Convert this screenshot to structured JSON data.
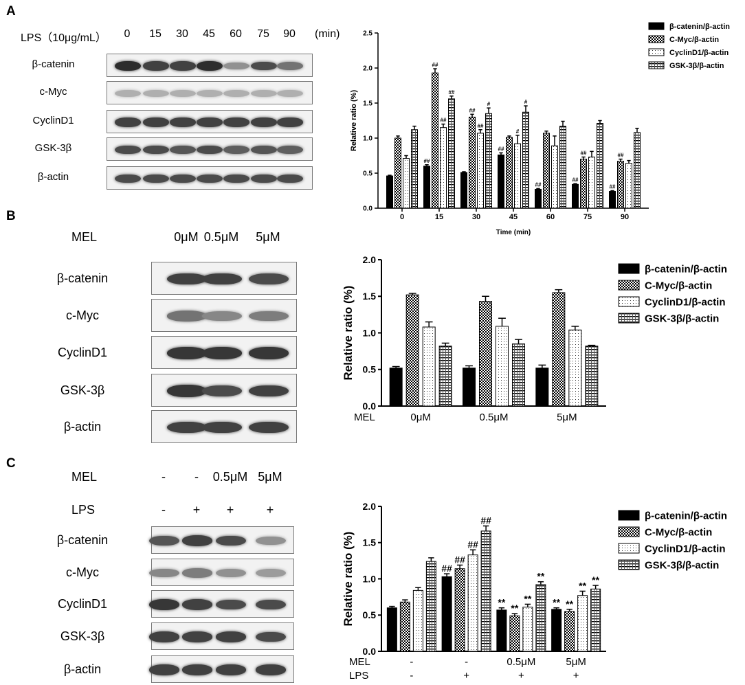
{
  "panelA": {
    "letter": "A",
    "treatment_label": "LPS（10μg/mL）",
    "lanes": [
      "0",
      "15",
      "30",
      "45",
      "60",
      "75",
      "90"
    ],
    "unit": "(min)",
    "rows": [
      {
        "label": "β-catenin",
        "intensity": [
          0.95,
          0.85,
          0.85,
          0.95,
          0.45,
          0.8,
          0.6
        ]
      },
      {
        "label": "c-Myc",
        "intensity": [
          0.3,
          0.3,
          0.3,
          0.3,
          0.3,
          0.3,
          0.3
        ]
      },
      {
        "label": "CyclinD1",
        "intensity": [
          0.85,
          0.85,
          0.85,
          0.85,
          0.85,
          0.85,
          0.85
        ]
      },
      {
        "label": "GSK-3β",
        "intensity": [
          0.8,
          0.8,
          0.75,
          0.8,
          0.7,
          0.75,
          0.7
        ]
      },
      {
        "label": "β-actin",
        "intensity": [
          0.8,
          0.8,
          0.8,
          0.8,
          0.8,
          0.8,
          0.8
        ]
      }
    ]
  },
  "panelB": {
    "letter": "B",
    "treatment_label": "MEL",
    "lanes": [
      "0μM",
      "0.5μM",
      "5μM"
    ],
    "rows": [
      {
        "label": "β-catenin",
        "intensity": [
          0.85,
          0.85,
          0.8
        ]
      },
      {
        "label": "c-Myc",
        "intensity": [
          0.6,
          0.5,
          0.55
        ]
      },
      {
        "label": "CyclinD1",
        "intensity": [
          0.9,
          0.9,
          0.9
        ]
      },
      {
        "label": "GSK-3β",
        "intensity": [
          0.9,
          0.8,
          0.85
        ]
      },
      {
        "label": "β-actin",
        "intensity": [
          0.85,
          0.85,
          0.85
        ]
      }
    ]
  },
  "panelC": {
    "letter": "C",
    "mel_label": "MEL",
    "mel_lanes": [
      "-",
      "-",
      "0.5μM",
      "5μM"
    ],
    "lps_label": "LPS",
    "lps_lanes": [
      "-",
      "+",
      "+",
      "+"
    ],
    "rows": [
      {
        "label": "β-catenin",
        "intensity": [
          0.75,
          0.85,
          0.8,
          0.45
        ]
      },
      {
        "label": "c-Myc",
        "intensity": [
          0.5,
          0.55,
          0.45,
          0.4
        ]
      },
      {
        "label": "CyclinD1",
        "intensity": [
          0.9,
          0.85,
          0.8,
          0.8
        ]
      },
      {
        "label": "GSK-3β",
        "intensity": [
          0.85,
          0.85,
          0.85,
          0.8
        ]
      },
      {
        "label": "β-actin",
        "intensity": [
          0.85,
          0.85,
          0.85,
          0.85
        ]
      }
    ]
  },
  "colors": {
    "black": "#000000",
    "band": "#1a1a1a",
    "blot_bg": "#f2f2f2"
  },
  "chart_data": [
    {
      "id": "A",
      "type": "bar",
      "ylabel": "Relative ratio (%)",
      "xlabel": "Time (min)",
      "ylim": [
        0,
        2.5
      ],
      "yticks": [
        "0.0",
        "0.5",
        "1.0",
        "1.5",
        "2.0",
        "2.5"
      ],
      "categories": [
        "0",
        "15",
        "30",
        "45",
        "60",
        "75",
        "90"
      ],
      "legend_position": "top-right",
      "series": [
        {
          "name": "β-catenin/β-actin",
          "pattern": "solid",
          "values": [
            0.46,
            0.6,
            0.51,
            0.76,
            0.27,
            0.34,
            0.24
          ],
          "errors": [
            0.01,
            0.02,
            0.01,
            0.03,
            0.01,
            0.01,
            0.01
          ],
          "marks": [
            "",
            "##",
            "",
            "##",
            "##",
            "##",
            "##"
          ]
        },
        {
          "name": "C-Myc/β-actin",
          "pattern": "check",
          "values": [
            1.0,
            1.93,
            1.3,
            1.01,
            1.07,
            0.7,
            0.67
          ],
          "errors": [
            0.03,
            0.06,
            0.04,
            0.02,
            0.03,
            0.03,
            0.03
          ],
          "marks": [
            "",
            "##",
            "##",
            "",
            "",
            "##",
            "##"
          ]
        },
        {
          "name": "CyclinD1/β-actin",
          "pattern": "dots",
          "values": [
            0.71,
            1.15,
            1.07,
            0.92,
            0.89,
            0.73,
            0.64
          ],
          "errors": [
            0.04,
            0.05,
            0.05,
            0.12,
            0.14,
            0.08,
            0.04
          ],
          "marks": [
            "",
            "##",
            "##",
            "#",
            "",
            "",
            ""
          ]
        },
        {
          "name": "GSK-3β/β-actin",
          "pattern": "hlines",
          "values": [
            1.12,
            1.56,
            1.35,
            1.37,
            1.17,
            1.21,
            1.08
          ],
          "errors": [
            0.05,
            0.04,
            0.08,
            0.09,
            0.07,
            0.04,
            0.06
          ],
          "marks": [
            "",
            "##",
            "#",
            "#",
            "",
            "",
            ""
          ]
        }
      ]
    },
    {
      "id": "B",
      "type": "bar",
      "ylabel": "Relative ratio (%)",
      "x_row_label": "MEL",
      "ylim": [
        0,
        2.0
      ],
      "yticks": [
        "0.0",
        "0.5",
        "1.0",
        "1.5",
        "2.0"
      ],
      "categories": [
        "0μM",
        "0.5μM",
        "5μM"
      ],
      "legend_position": "right",
      "series": [
        {
          "name": "β-catenin/β-actin",
          "pattern": "solid",
          "values": [
            0.52,
            0.52,
            0.52
          ],
          "errors": [
            0.02,
            0.03,
            0.04
          ]
        },
        {
          "name": "C-Myc/β-actin",
          "pattern": "check",
          "values": [
            1.52,
            1.43,
            1.55
          ],
          "errors": [
            0.02,
            0.07,
            0.04
          ]
        },
        {
          "name": "CyclinD1/β-actin",
          "pattern": "dots",
          "values": [
            1.08,
            1.09,
            1.04
          ],
          "errors": [
            0.07,
            0.11,
            0.05
          ]
        },
        {
          "name": "GSK-3β/β-actin",
          "pattern": "hlines",
          "values": [
            0.82,
            0.85,
            0.82
          ],
          "errors": [
            0.04,
            0.06,
            0.01
          ]
        }
      ]
    },
    {
      "id": "C",
      "type": "bar",
      "ylabel": "Relative ratio (%)",
      "x_row_labels": [
        "MEL",
        "LPS"
      ],
      "ylim": [
        0,
        2.0
      ],
      "yticks": [
        "0.0",
        "0.5",
        "1.0",
        "1.5",
        "2.0"
      ],
      "categories": [
        "-",
        "-",
        "0.5μM",
        "5μM"
      ],
      "categories_row2": [
        "-",
        "+",
        "+",
        "+"
      ],
      "legend_position": "right",
      "series": [
        {
          "name": "β-catenin/β-actin",
          "pattern": "solid",
          "values": [
            0.6,
            1.03,
            0.57,
            0.58
          ],
          "errors": [
            0.02,
            0.04,
            0.03,
            0.02
          ],
          "marks": [
            "",
            "##",
            "**",
            "**"
          ]
        },
        {
          "name": "C-Myc/β-actin",
          "pattern": "check",
          "values": [
            0.68,
            1.14,
            0.49,
            0.55
          ],
          "errors": [
            0.03,
            0.05,
            0.03,
            0.03
          ],
          "marks": [
            "",
            "##",
            "**",
            "**"
          ]
        },
        {
          "name": "CyclinD1/β-actin",
          "pattern": "dots",
          "values": [
            0.84,
            1.33,
            0.61,
            0.77
          ],
          "errors": [
            0.04,
            0.07,
            0.04,
            0.06
          ],
          "marks": [
            "",
            "##",
            "**",
            "**"
          ]
        },
        {
          "name": "GSK-3β/β-actin",
          "pattern": "hlines",
          "values": [
            1.24,
            1.66,
            0.92,
            0.86
          ],
          "errors": [
            0.05,
            0.07,
            0.04,
            0.05
          ],
          "marks": [
            "",
            "##",
            "**",
            "**"
          ]
        }
      ]
    }
  ]
}
